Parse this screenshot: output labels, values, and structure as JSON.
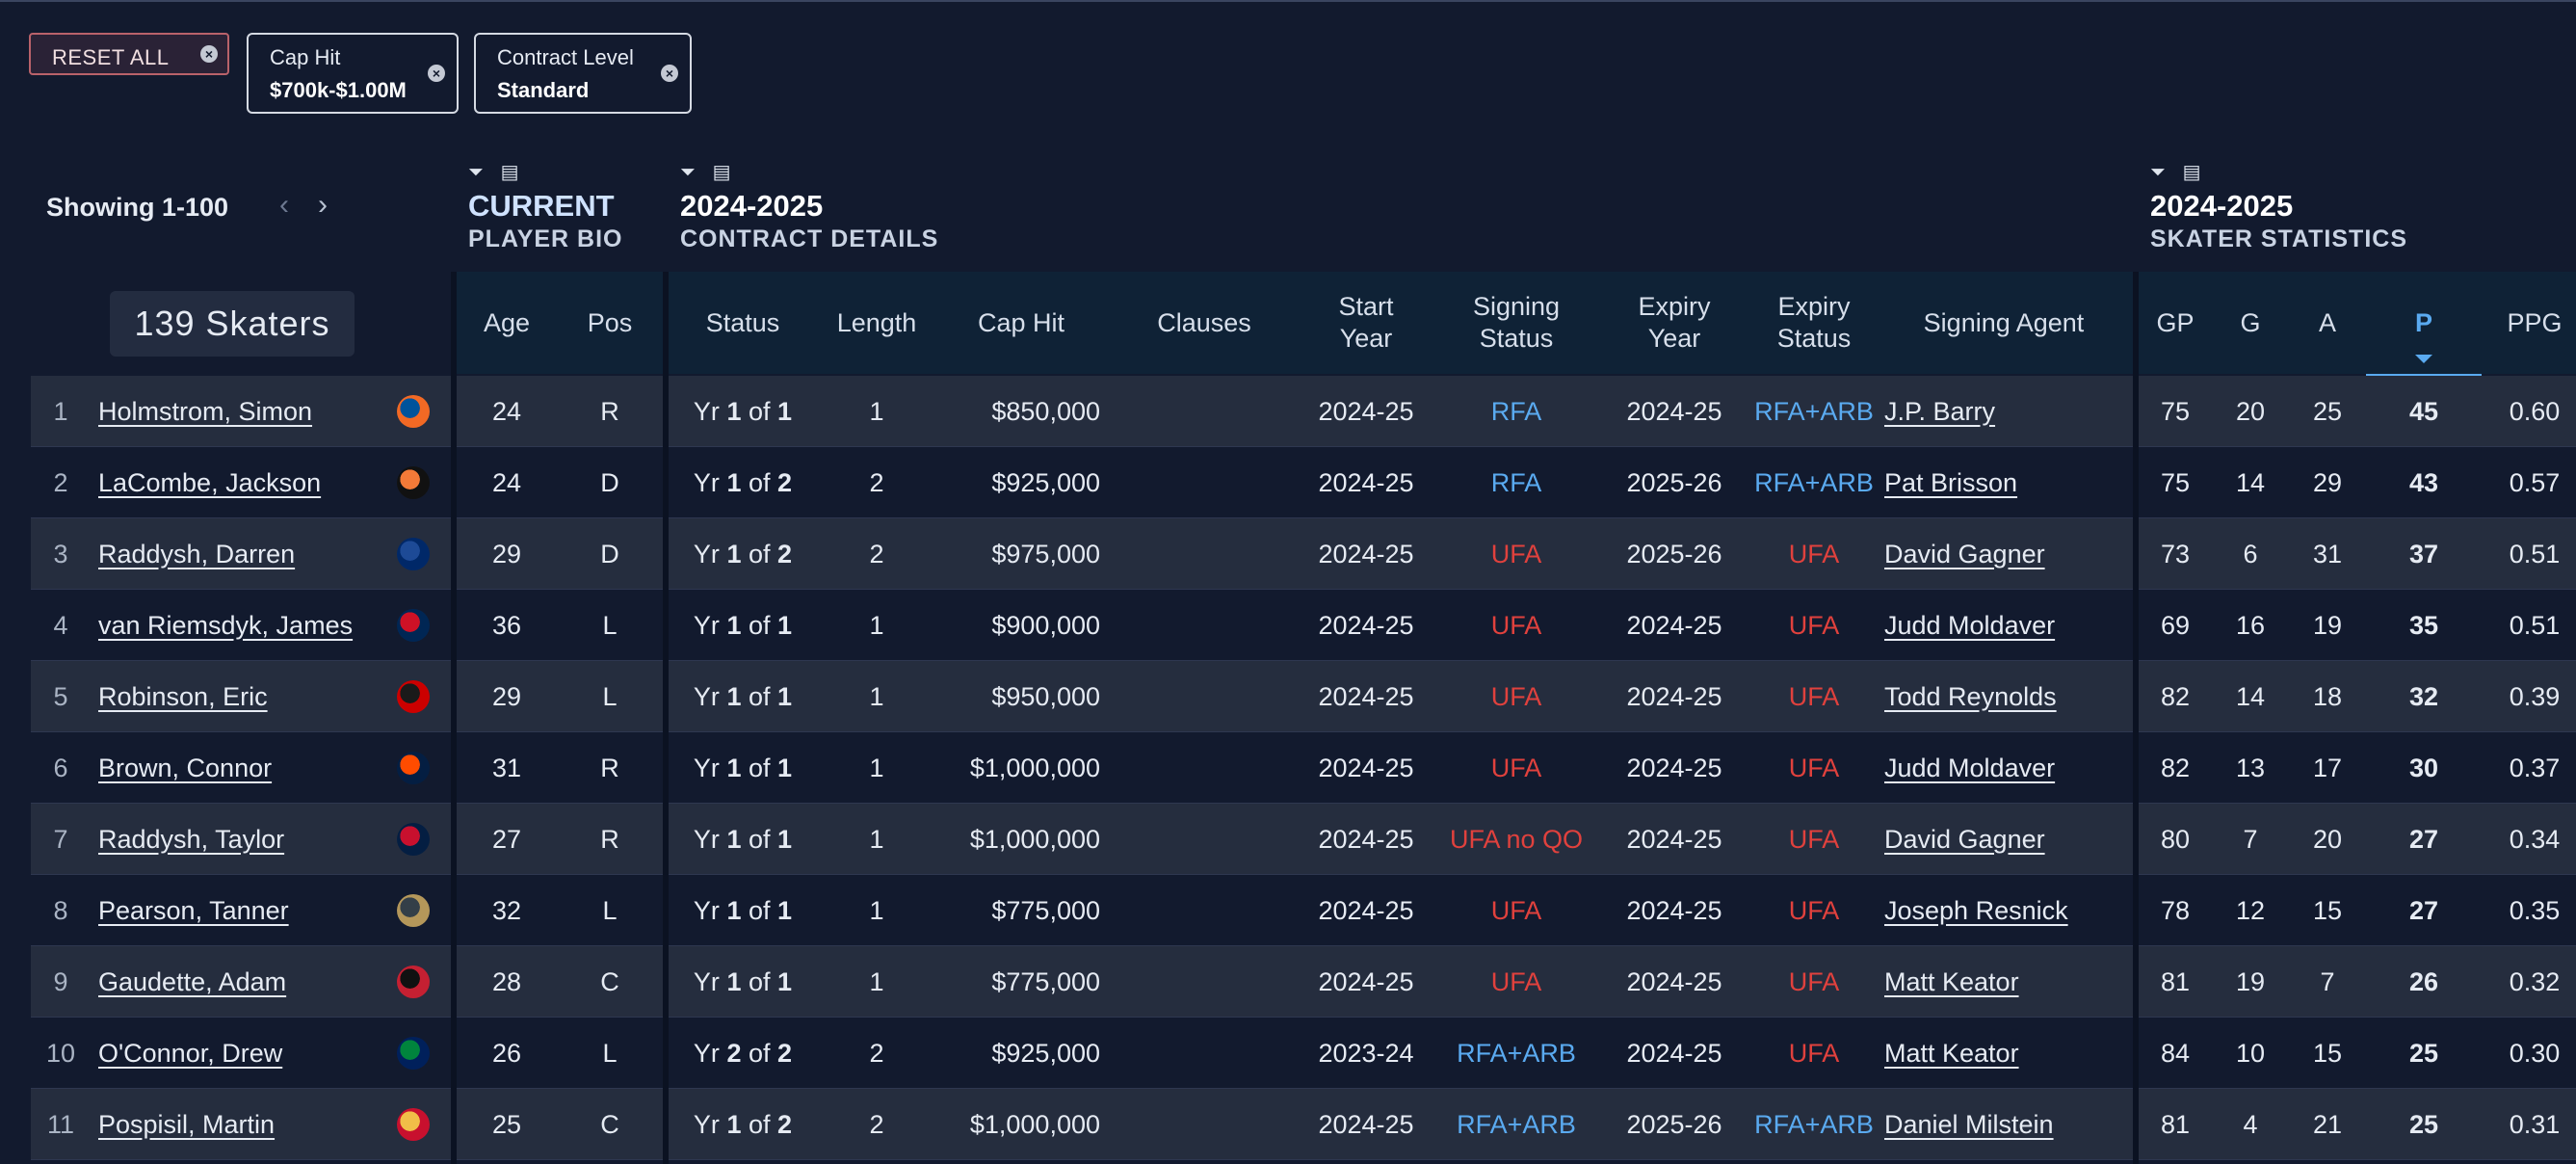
{
  "filters": {
    "reset_label": "RESET ALL",
    "chips": [
      {
        "title": "Cap Hit",
        "value": "$700k-$1.00M"
      },
      {
        "title": "Contract Level",
        "value": "Standard"
      }
    ]
  },
  "pagination": {
    "showing": "Showing 1-100",
    "prev_icon": "‹",
    "next_icon": "›"
  },
  "skaters_count": "139 Skaters",
  "groups": [
    {
      "title": "CURRENT",
      "subtitle": "PLAYER BIO"
    },
    {
      "title": "2024-2025",
      "subtitle": "CONTRACT DETAILS"
    },
    {
      "title": "2024-2025",
      "subtitle": "SKATER STATISTICS"
    }
  ],
  "columns": {
    "age": "Age",
    "pos": "Pos",
    "status": "Status",
    "length": "Length",
    "cap_hit": "Cap Hit",
    "clauses": "Clauses",
    "start_year": "Start Year",
    "signing_status": "Signing Status",
    "expiry_year": "Expiry Year",
    "expiry_status": "Expiry Status",
    "signing_agent": "Signing Agent",
    "gp": "GP",
    "g": "G",
    "a": "A",
    "p": "P",
    "ppg": "PPG"
  },
  "colors": {
    "rfa": "#5aaaf0",
    "ufa": "#e0413d",
    "accent": "#5aaaf0"
  },
  "rows": [
    {
      "rank": "1",
      "name": "Holmstrom, Simon",
      "logo": "islanders-logo",
      "age": "24",
      "pos": "R",
      "yr": "1",
      "of": "1",
      "length": "1",
      "cap_hit": "$850,000",
      "start": "2024-25",
      "sign": "RFA",
      "expiry": "2024-25",
      "exp_status": "RFA+ARB",
      "agent": "J.P. Barry",
      "gp": "75",
      "g": "20",
      "a": "25",
      "p": "45",
      "ppg": "0.60"
    },
    {
      "rank": "2",
      "name": "LaCombe, Jackson",
      "logo": "ducks-logo",
      "age": "24",
      "pos": "D",
      "yr": "1",
      "of": "2",
      "length": "2",
      "cap_hit": "$925,000",
      "start": "2024-25",
      "sign": "RFA",
      "expiry": "2025-26",
      "exp_status": "RFA+ARB",
      "agent": "Pat Brisson",
      "gp": "75",
      "g": "14",
      "a": "29",
      "p": "43",
      "ppg": "0.57"
    },
    {
      "rank": "3",
      "name": "Raddysh, Darren",
      "logo": "lightning-logo",
      "age": "29",
      "pos": "D",
      "yr": "1",
      "of": "2",
      "length": "2",
      "cap_hit": "$975,000",
      "start": "2024-25",
      "sign": "UFA",
      "expiry": "2025-26",
      "exp_status": "UFA",
      "agent": "David Gagner",
      "gp": "73",
      "g": "6",
      "a": "31",
      "p": "37",
      "ppg": "0.51"
    },
    {
      "rank": "4",
      "name": "van Riemsdyk, James",
      "logo": "blue-jackets-logo",
      "age": "36",
      "pos": "L",
      "yr": "1",
      "of": "1",
      "length": "1",
      "cap_hit": "$900,000",
      "start": "2024-25",
      "sign": "UFA",
      "expiry": "2024-25",
      "exp_status": "UFA",
      "agent": "Judd Moldaver",
      "gp": "69",
      "g": "16",
      "a": "19",
      "p": "35",
      "ppg": "0.51"
    },
    {
      "rank": "5",
      "name": "Robinson, Eric",
      "logo": "hurricanes-logo",
      "age": "29",
      "pos": "L",
      "yr": "1",
      "of": "1",
      "length": "1",
      "cap_hit": "$950,000",
      "start": "2024-25",
      "sign": "UFA",
      "expiry": "2024-25",
      "exp_status": "UFA",
      "agent": "Todd Reynolds",
      "gp": "82",
      "g": "14",
      "a": "18",
      "p": "32",
      "ppg": "0.39"
    },
    {
      "rank": "6",
      "name": "Brown, Connor",
      "logo": "oilers-logo",
      "age": "31",
      "pos": "R",
      "yr": "1",
      "of": "1",
      "length": "1",
      "cap_hit": "$1,000,000",
      "start": "2024-25",
      "sign": "UFA",
      "expiry": "2024-25",
      "exp_status": "UFA",
      "agent": "Judd Moldaver",
      "gp": "82",
      "g": "13",
      "a": "17",
      "p": "30",
      "ppg": "0.37"
    },
    {
      "rank": "7",
      "name": "Raddysh, Taylor",
      "logo": "capitals-logo",
      "age": "27",
      "pos": "R",
      "yr": "1",
      "of": "1",
      "length": "1",
      "cap_hit": "$1,000,000",
      "start": "2024-25",
      "sign": "UFA no QO",
      "expiry": "2024-25",
      "exp_status": "UFA",
      "agent": "David Gagner",
      "gp": "80",
      "g": "7",
      "a": "20",
      "p": "27",
      "ppg": "0.34"
    },
    {
      "rank": "8",
      "name": "Pearson, Tanner",
      "logo": "golden-knights-logo",
      "age": "32",
      "pos": "L",
      "yr": "1",
      "of": "1",
      "length": "1",
      "cap_hit": "$775,000",
      "start": "2024-25",
      "sign": "UFA",
      "expiry": "2024-25",
      "exp_status": "UFA",
      "agent": "Joseph Resnick",
      "gp": "78",
      "g": "12",
      "a": "15",
      "p": "27",
      "ppg": "0.35"
    },
    {
      "rank": "9",
      "name": "Gaudette, Adam",
      "logo": "senators-logo",
      "age": "28",
      "pos": "C",
      "yr": "1",
      "of": "1",
      "length": "1",
      "cap_hit": "$775,000",
      "start": "2024-25",
      "sign": "UFA",
      "expiry": "2024-25",
      "exp_status": "UFA",
      "agent": "Matt Keator",
      "gp": "81",
      "g": "19",
      "a": "7",
      "p": "26",
      "ppg": "0.32"
    },
    {
      "rank": "10",
      "name": "O'Connor, Drew",
      "logo": "canucks-logo",
      "age": "26",
      "pos": "L",
      "yr": "2",
      "of": "2",
      "length": "2",
      "cap_hit": "$925,000",
      "start": "2023-24",
      "sign": "RFA+ARB",
      "expiry": "2024-25",
      "exp_status": "UFA",
      "agent": "Matt Keator",
      "gp": "84",
      "g": "10",
      "a": "15",
      "p": "25",
      "ppg": "0.30"
    },
    {
      "rank": "11",
      "name": "Pospisil, Martin",
      "logo": "flames-logo",
      "age": "25",
      "pos": "C",
      "yr": "1",
      "of": "2",
      "length": "2",
      "cap_hit": "$1,000,000",
      "start": "2024-25",
      "sign": "RFA+ARB",
      "expiry": "2025-26",
      "exp_status": "RFA+ARB",
      "agent": "Daniel Milstein",
      "gp": "81",
      "g": "4",
      "a": "21",
      "p": "25",
      "ppg": "0.31"
    }
  ],
  "labels": {
    "yr": "Yr",
    "of": "of"
  }
}
